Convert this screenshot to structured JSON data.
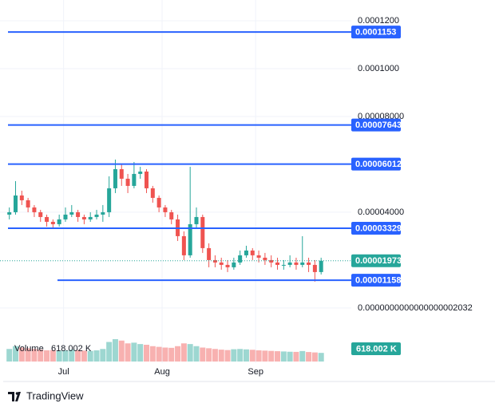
{
  "chart_data": {
    "type": "candlestick",
    "up_color": "#26a69a",
    "down_color": "#ef5350",
    "level_color": "#2962ff",
    "open": [
      3.9e-05,
      4e-05,
      4.7e-05,
      4.5e-05,
      4.2e-05,
      4e-05,
      3.8e-05,
      3.6e-05,
      3.5e-05,
      3.7e-05,
      3.9e-05,
      4e-05,
      3.8e-05,
      3.7e-05,
      3.8e-05,
      3.9e-05,
      4e-05,
      5e-05,
      5.8e-05,
      5.4e-05,
      5.1e-05,
      5.6e-05,
      5.7e-05,
      5e-05,
      4.6e-05,
      4.2e-05,
      4e-05,
      3.7e-05,
      3e-05,
      2.2e-05,
      3.5e-05,
      3.8e-05,
      2.5e-05,
      2e-05,
      1.9e-05,
      1.8e-05,
      1.7e-05,
      1.9e-05,
      2.2e-05,
      2.4e-05,
      2.2e-05,
      2.1e-05,
      2e-05,
      1.9e-05,
      1.8e-05,
      1.8e-05,
      1.9e-05,
      1.8e-05,
      1.9e-05,
      1.8e-05,
      1.5e-05
    ],
    "high": [
      4.2e-05,
      5.3e-05,
      4.9e-05,
      4.6e-05,
      4.3e-05,
      4.1e-05,
      3.9e-05,
      3.7e-05,
      3.9e-05,
      4.2e-05,
      4.3e-05,
      4.1e-05,
      3.9e-05,
      4e-05,
      4.1e-05,
      4.3e-05,
      5.5e-05,
      6.2e-05,
      6e-05,
      5.6e-05,
      6.1e-05,
      5.9e-05,
      5.8e-05,
      5.1e-05,
      4.7e-05,
      4.3e-05,
      4.1e-05,
      3.9e-05,
      3.2e-05,
      5.9e-05,
      4.2e-05,
      3.9e-05,
      2.7e-05,
      2.2e-05,
      2.1e-05,
      2e-05,
      2.1e-05,
      2.4e-05,
      2.6e-05,
      2.5e-05,
      2.4e-05,
      2.3e-05,
      2.2e-05,
      2.1e-05,
      2e-05,
      2.2e-05,
      2.1e-05,
      3e-05,
      2.1e-05,
      2e-05,
      2.1e-05
    ],
    "low": [
      3.7e-05,
      3.9e-05,
      4.3e-05,
      4e-05,
      3.8e-05,
      3.6e-05,
      3.4e-05,
      3.3e-05,
      3.4e-05,
      3.6e-05,
      3.8e-05,
      3.6e-05,
      3.5e-05,
      3.6e-05,
      3.7e-05,
      3.6e-05,
      3.8e-05,
      4.8e-05,
      5.1e-05,
      4.8e-05,
      5e-05,
      5.4e-05,
      4.8e-05,
      4.4e-05,
      4e-05,
      3.8e-05,
      3.5e-05,
      2.8e-05,
      2e-05,
      2.1e-05,
      3.3e-05,
      2.3e-05,
      1.7e-05,
      1.7e-05,
      1.6e-05,
      1.5e-05,
      1.6e-05,
      1.8e-05,
      2.1e-05,
      2e-05,
      1.9e-05,
      1.8e-05,
      1.7e-05,
      1.6e-05,
      1.6e-05,
      1.7e-05,
      1.6e-05,
      1.7e-05,
      1.5e-05,
      1.1e-05,
      1.4e-05
    ],
    "close": [
      4e-05,
      4.7e-05,
      4.5e-05,
      4.2e-05,
      4e-05,
      3.8e-05,
      3.6e-05,
      3.5e-05,
      3.7e-05,
      3.9e-05,
      4e-05,
      3.8e-05,
      3.7e-05,
      3.8e-05,
      3.9e-05,
      4e-05,
      5e-05,
      5.8e-05,
      5.4e-05,
      5.1e-05,
      5.6e-05,
      5.7e-05,
      5e-05,
      4.6e-05,
      4.2e-05,
      4e-05,
      3.7e-05,
      3e-05,
      2.2e-05,
      3.5e-05,
      3.8e-05,
      2.5e-05,
      2e-05,
      1.9e-05,
      1.8e-05,
      1.7e-05,
      1.9e-05,
      2.2e-05,
      2.4e-05,
      2.2e-05,
      2.1e-05,
      2e-05,
      1.9e-05,
      1.8e-05,
      1.8e-05,
      1.9e-05,
      1.8e-05,
      1.9e-05,
      1.8e-05,
      1.5e-05,
      1.973e-05
    ],
    "volume": {
      "name": "Volume",
      "last_label": "618.002 K",
      "values": [
        900000,
        1100000,
        1000000,
        950000,
        900000,
        850000,
        800000,
        820000,
        780000,
        800000,
        850000,
        820000,
        780000,
        760000,
        800000,
        900000,
        1400000,
        1600000,
        1500000,
        1300000,
        1350000,
        1250000,
        1200000,
        1100000,
        1050000,
        1000000,
        980000,
        1100000,
        1300000,
        1250000,
        1100000,
        1000000,
        950000,
        900000,
        850000,
        820000,
        880000,
        900000,
        870000,
        840000,
        800000,
        780000,
        760000,
        740000,
        720000,
        700000,
        690000,
        750000,
        680000,
        650000,
        618002
      ]
    },
    "levels": [
      0.0001153,
      7.643e-05,
      6.012e-05,
      3.329e-05,
      1.158e-05
    ],
    "ylim": [
      -4.7e-06,
      0.000127
    ],
    "yticks": [
      {
        "value": 0.00012,
        "label": "0.0001200"
      },
      {
        "value": 0.0001,
        "label": "0.0001000"
      },
      {
        "value": 8e-05,
        "label": "0.00008000"
      },
      {
        "value": 4e-05,
        "label": "0.00004000"
      },
      {
        "value": 2.032e-19,
        "label": "0.0000000000000000002032"
      }
    ],
    "xlim": [
      -0.6,
      51
    ],
    "xticks": [
      {
        "value": 8.7,
        "label": "Jul"
      },
      {
        "value": 24.5,
        "label": "Aug"
      },
      {
        "value": 39.5,
        "label": "Sep"
      }
    ],
    "grid": true,
    "brand": "TradingView"
  }
}
